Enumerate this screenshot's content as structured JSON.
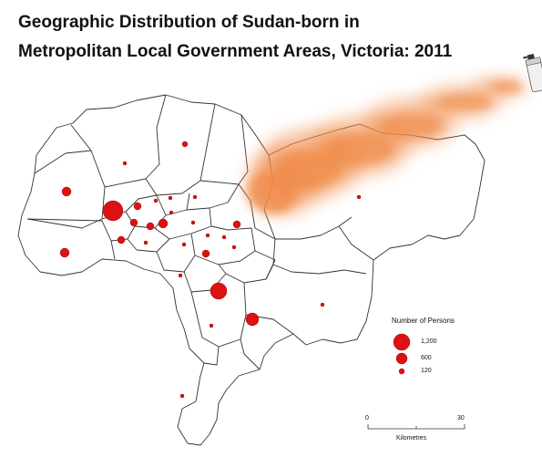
{
  "title_line1": "Geographic Distribution of Sudan-born in",
  "title_line2": "Metropolitan Local Government Areas, Victoria: 2011",
  "legend": {
    "title": "Number of Persons",
    "items": [
      {
        "label": "1,200",
        "value": 1200
      },
      {
        "label": "600",
        "value": 600
      },
      {
        "label": "120",
        "value": 120
      }
    ]
  },
  "scale_bar": {
    "min_label": "0",
    "max_label": "30",
    "unit_label": "Kilometres"
  },
  "colors": {
    "symbol": "#dd1111",
    "boundary": "#333333",
    "spray": "#f08a46"
  },
  "spray_can_icon": "spray-can-icon"
}
